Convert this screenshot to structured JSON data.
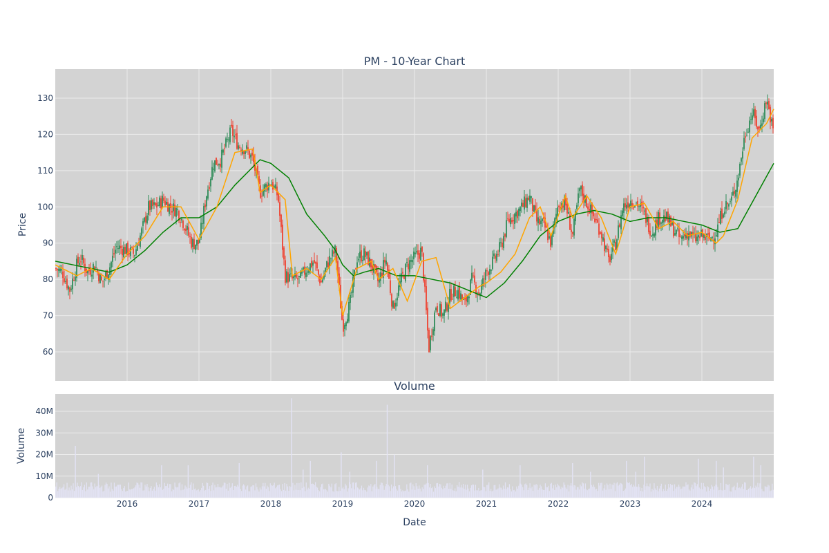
{
  "chart_data": [
    {
      "type": "candlestick",
      "title": "PM - 10-Year Chart",
      "xlabel": "",
      "ylabel": "Price",
      "ylim": [
        52,
        138
      ],
      "yticks": [
        60,
        70,
        80,
        90,
        100,
        110,
        120,
        130
      ],
      "xlim": [
        2015.0,
        2025.0
      ],
      "grid": true,
      "legend": "none",
      "colors": {
        "background": "#d3d3d3",
        "grid": "#ebebeb",
        "up": "#2e8b57",
        "down": "#ef4130",
        "ma_short": "#ffa500",
        "ma_long": "#008000"
      },
      "series": [
        {
          "kind": "ohlc-close",
          "x": [
            2015.0,
            2015.1,
            2015.2,
            2015.3,
            2015.35,
            2015.45,
            2015.55,
            2015.65,
            2015.75,
            2015.85,
            2016.0,
            2016.1,
            2016.2,
            2016.3,
            2016.4,
            2016.5,
            2016.6,
            2016.7,
            2016.8,
            2016.9,
            2017.0,
            2017.1,
            2017.2,
            2017.3,
            2017.45,
            2017.55,
            2017.65,
            2017.75,
            2017.85,
            2017.95,
            2018.0,
            2018.1,
            2018.2,
            2018.3,
            2018.4,
            2018.5,
            2018.6,
            2018.7,
            2018.8,
            2018.9,
            2019.0,
            2019.1,
            2019.2,
            2019.3,
            2019.4,
            2019.5,
            2019.6,
            2019.7,
            2019.8,
            2019.9,
            2020.0,
            2020.1,
            2020.2,
            2020.3,
            2020.4,
            2020.5,
            2020.6,
            2020.7,
            2020.8,
            2020.9,
            2021.0,
            2021.1,
            2021.2,
            2021.3,
            2021.4,
            2021.5,
            2021.6,
            2021.7,
            2021.8,
            2021.9,
            2022.0,
            2022.1,
            2022.2,
            2022.3,
            2022.4,
            2022.5,
            2022.6,
            2022.7,
            2022.8,
            2022.9,
            2023.0,
            2023.1,
            2023.2,
            2023.3,
            2023.4,
            2023.5,
            2023.6,
            2023.7,
            2023.8,
            2023.9,
            2024.0,
            2024.1,
            2024.2,
            2024.3,
            2024.4,
            2024.5,
            2024.6,
            2024.7,
            2024.8,
            2024.9,
            2025.0
          ],
          "values": [
            83,
            82,
            77,
            84,
            86,
            82,
            84,
            79,
            83,
            89,
            88,
            87,
            93,
            100,
            100,
            102,
            100,
            99,
            95,
            90,
            90,
            103,
            112,
            113,
            121,
            117,
            116,
            113,
            104,
            106,
            107,
            103,
            81,
            80,
            80,
            83,
            85,
            79,
            85,
            88,
            67,
            73,
            86,
            87,
            84,
            79,
            86,
            72,
            79,
            84,
            86,
            88,
            61,
            73,
            70,
            76,
            77,
            73,
            80,
            76,
            82,
            85,
            89,
            96,
            98,
            100,
            103,
            96,
            95,
            90,
            101,
            101,
            92,
            105,
            101,
            97,
            93,
            85,
            90,
            100,
            102,
            101,
            98,
            93,
            97,
            97,
            94,
            91,
            93,
            91,
            92,
            91,
            93,
            100,
            101,
            108,
            120,
            126,
            121,
            130,
            120
          ]
        },
        {
          "kind": "moving-average-short",
          "x": [
            2015.0,
            2015.3,
            2015.5,
            2015.75,
            2016.0,
            2016.25,
            2016.5,
            2016.75,
            2017.0,
            2017.25,
            2017.5,
            2017.75,
            2017.85,
            2018.0,
            2018.2,
            2018.3,
            2018.5,
            2018.7,
            2018.9,
            2019.0,
            2019.2,
            2019.4,
            2019.5,
            2019.7,
            2019.9,
            2020.1,
            2020.3,
            2020.5,
            2020.7,
            2020.9,
            2021.0,
            2021.2,
            2021.4,
            2021.6,
            2021.75,
            2021.9,
            2022.1,
            2022.2,
            2022.4,
            2022.6,
            2022.8,
            2023.0,
            2023.2,
            2023.4,
            2023.6,
            2023.8,
            2024.0,
            2024.2,
            2024.3,
            2024.5,
            2024.7,
            2024.9,
            2025.0
          ],
          "values": [
            84,
            81,
            83,
            80,
            87,
            92,
            100,
            100,
            91,
            100,
            115,
            116,
            104,
            106,
            102,
            81,
            83,
            80,
            86,
            70,
            83,
            85,
            80,
            83,
            74,
            85,
            86,
            72,
            75,
            78,
            79,
            82,
            87,
            97,
            100,
            92,
            103,
            97,
            103,
            97,
            87,
            100,
            101,
            94,
            96,
            92,
            93,
            90,
            92,
            102,
            119,
            123,
            127
          ]
        },
        {
          "kind": "moving-average-long",
          "x": [
            2015.0,
            2015.25,
            2015.5,
            2015.75,
            2016.0,
            2016.25,
            2016.5,
            2016.75,
            2017.0,
            2017.25,
            2017.5,
            2017.75,
            2017.85,
            2018.0,
            2018.25,
            2018.5,
            2018.75,
            2018.9,
            2019.0,
            2019.15,
            2019.3,
            2019.5,
            2019.75,
            2020.0,
            2020.25,
            2020.5,
            2020.75,
            2021.0,
            2021.25,
            2021.5,
            2021.75,
            2022.0,
            2022.25,
            2022.5,
            2022.75,
            2023.0,
            2023.25,
            2023.5,
            2023.75,
            2024.0,
            2024.25,
            2024.5,
            2024.75,
            2025.0
          ],
          "values": [
            85,
            84,
            83,
            82,
            84,
            88,
            93,
            97,
            97,
            100,
            106,
            111,
            113,
            112,
            108,
            98,
            92,
            88,
            84,
            81,
            82,
            83,
            81,
            81,
            80,
            79,
            77,
            75,
            79,
            85,
            92,
            96,
            98,
            99,
            98,
            96,
            97,
            97,
            96,
            95,
            93,
            94,
            103,
            112
          ]
        }
      ]
    },
    {
      "type": "bar",
      "title": "Volume",
      "xlabel": "Date",
      "ylabel": "Volume",
      "ylim": [
        0,
        48000000
      ],
      "yticks": [
        0,
        10000000,
        20000000,
        30000000,
        40000000
      ],
      "ytick_labels": [
        "0",
        "10M",
        "20M",
        "30M",
        "40M"
      ],
      "xlim": [
        2015.0,
        2025.0
      ],
      "xticks": [
        2016,
        2017,
        2018,
        2019,
        2020,
        2021,
        2022,
        2023,
        2024
      ],
      "xtick_labels": [
        "2016",
        "2017",
        "2018",
        "2019",
        "2020",
        "2021",
        "2022",
        "2023",
        "2024"
      ],
      "colors": {
        "bar": "#e3e3f5",
        "background": "#d3d3d3",
        "grid": "#ebebeb"
      },
      "baseline": 5000000,
      "spikes": [
        {
          "x": 2015.28,
          "value": 24000000
        },
        {
          "x": 2015.6,
          "value": 11000000
        },
        {
          "x": 2016.48,
          "value": 15000000
        },
        {
          "x": 2016.85,
          "value": 15000000
        },
        {
          "x": 2017.56,
          "value": 16000000
        },
        {
          "x": 2018.29,
          "value": 46000000
        },
        {
          "x": 2018.45,
          "value": 13000000
        },
        {
          "x": 2018.55,
          "value": 17000000
        },
        {
          "x": 2018.98,
          "value": 21000000
        },
        {
          "x": 2019.1,
          "value": 12000000
        },
        {
          "x": 2019.47,
          "value": 17000000
        },
        {
          "x": 2019.62,
          "value": 43000000
        },
        {
          "x": 2019.72,
          "value": 20000000
        },
        {
          "x": 2020.18,
          "value": 15000000
        },
        {
          "x": 2020.95,
          "value": 13000000
        },
        {
          "x": 2021.47,
          "value": 15000000
        },
        {
          "x": 2022.2,
          "value": 16000000
        },
        {
          "x": 2022.45,
          "value": 12000000
        },
        {
          "x": 2022.95,
          "value": 17000000
        },
        {
          "x": 2023.08,
          "value": 12000000
        },
        {
          "x": 2023.2,
          "value": 19000000
        },
        {
          "x": 2023.95,
          "value": 18000000
        },
        {
          "x": 2024.2,
          "value": 17000000
        },
        {
          "x": 2024.3,
          "value": 14000000
        },
        {
          "x": 2024.72,
          "value": 19000000
        },
        {
          "x": 2024.82,
          "value": 15000000
        }
      ]
    }
  ]
}
